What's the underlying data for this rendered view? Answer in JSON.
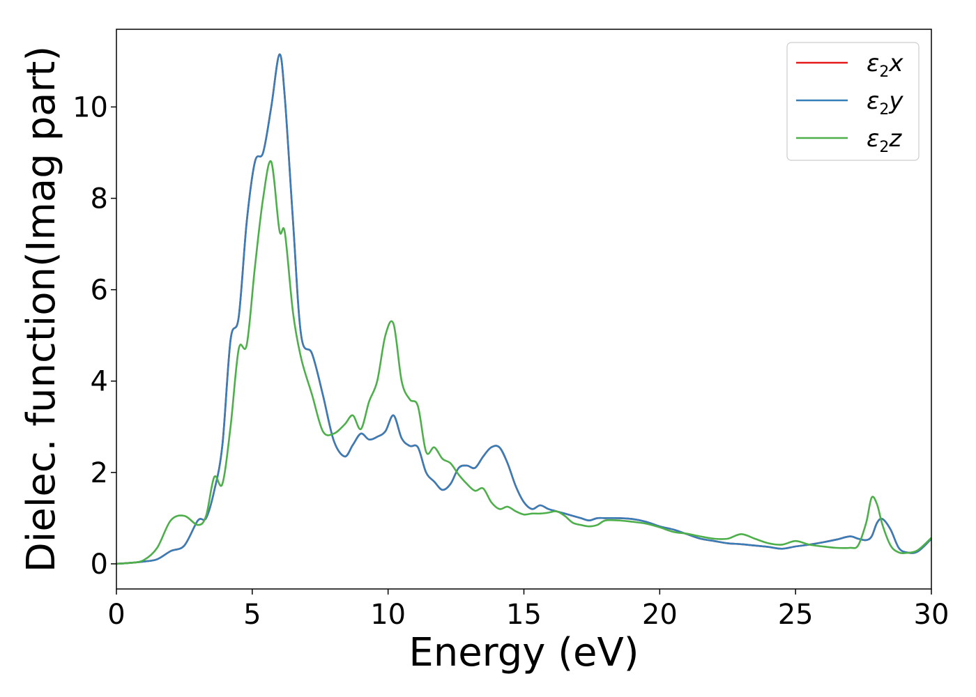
{
  "chart_data": {
    "type": "line",
    "xlabel": "Energy (eV)",
    "ylabel": "Dielec. function(Imag part)",
    "xlim": [
      0,
      30
    ],
    "ylim": [
      -0.55,
      11.7
    ],
    "xticks": [
      0,
      5,
      10,
      15,
      20,
      25,
      30
    ],
    "yticks": [
      0,
      2,
      4,
      6,
      8,
      10
    ],
    "grid": false,
    "legend_position": "top-right",
    "legend": [
      {
        "sym": "ε",
        "sub": "2",
        "var": "x",
        "color": "#e41a1c"
      },
      {
        "sym": "ε",
        "sub": "2",
        "var": "y",
        "color": "#377eb8"
      },
      {
        "sym": "ε",
        "sub": "2",
        "var": "z",
        "color": "#4daf4a"
      }
    ],
    "x": [
      0,
      0.5,
      1,
      1.5,
      2,
      2.5,
      3,
      3.3,
      3.6,
      3.9,
      4.2,
      4.5,
      4.8,
      5.1,
      5.4,
      5.7,
      6,
      6.2,
      6.5,
      6.8,
      7.2,
      7.6,
      8,
      8.4,
      8.7,
      9,
      9.3,
      9.6,
      9.9,
      10.2,
      10.5,
      10.8,
      11.1,
      11.4,
      11.7,
      12,
      12.3,
      12.6,
      12.9,
      13.2,
      13.5,
      13.8,
      14.1,
      14.4,
      14.7,
      15,
      15.3,
      15.6,
      15.9,
      16.2,
      16.5,
      16.8,
      17.1,
      17.4,
      17.7,
      18,
      18.5,
      19,
      19.5,
      20,
      20.5,
      21,
      21.5,
      22,
      22.5,
      23,
      23.5,
      24,
      24.5,
      25,
      25.5,
      26,
      26.5,
      27,
      27.3,
      27.6,
      27.8,
      28,
      28.2,
      28.5,
      28.8,
      29.1,
      29.5,
      30
    ],
    "series": [
      {
        "color": "#e41a1c",
        "values": [
          0,
          0.02,
          0.05,
          0.1,
          0.28,
          0.4,
          0.95,
          1.0,
          1.6,
          2.6,
          4.9,
          5.4,
          7.5,
          8.8,
          9.0,
          10.0,
          11.15,
          10.2,
          7.5,
          5.0,
          4.6,
          3.7,
          2.7,
          2.35,
          2.6,
          2.85,
          2.72,
          2.78,
          2.9,
          3.25,
          2.75,
          2.58,
          2.55,
          2.0,
          1.8,
          1.62,
          1.75,
          2.1,
          2.15,
          2.1,
          2.35,
          2.55,
          2.55,
          2.2,
          1.7,
          1.35,
          1.2,
          1.28,
          1.2,
          1.15,
          1.1,
          1.05,
          1.0,
          0.95,
          1.0,
          1.0,
          1.0,
          0.98,
          0.92,
          0.82,
          0.75,
          0.65,
          0.55,
          0.5,
          0.45,
          0.43,
          0.4,
          0.37,
          0.33,
          0.38,
          0.42,
          0.47,
          0.53,
          0.6,
          0.55,
          0.52,
          0.6,
          0.9,
          0.98,
          0.75,
          0.35,
          0.25,
          0.27,
          0.55
        ]
      },
      {
        "color": "#377eb8",
        "values": [
          0,
          0.02,
          0.05,
          0.1,
          0.28,
          0.4,
          0.95,
          1.0,
          1.6,
          2.6,
          4.9,
          5.4,
          7.5,
          8.8,
          9.0,
          10.0,
          11.15,
          10.2,
          7.5,
          5.0,
          4.6,
          3.7,
          2.7,
          2.35,
          2.6,
          2.85,
          2.72,
          2.78,
          2.9,
          3.25,
          2.75,
          2.58,
          2.55,
          2.0,
          1.8,
          1.62,
          1.75,
          2.1,
          2.15,
          2.1,
          2.35,
          2.55,
          2.55,
          2.2,
          1.7,
          1.35,
          1.2,
          1.28,
          1.2,
          1.15,
          1.1,
          1.05,
          1.0,
          0.95,
          1.0,
          1.0,
          1.0,
          0.98,
          0.92,
          0.82,
          0.75,
          0.65,
          0.55,
          0.5,
          0.45,
          0.43,
          0.4,
          0.37,
          0.33,
          0.38,
          0.42,
          0.47,
          0.53,
          0.6,
          0.55,
          0.52,
          0.6,
          0.9,
          0.98,
          0.75,
          0.35,
          0.25,
          0.27,
          0.55
        ]
      },
      {
        "color": "#4daf4a",
        "values": [
          0,
          0.02,
          0.08,
          0.35,
          0.95,
          1.05,
          0.85,
          1.05,
          1.9,
          1.75,
          3.0,
          4.7,
          4.8,
          6.5,
          8.0,
          8.8,
          7.3,
          7.25,
          5.5,
          4.5,
          3.7,
          2.9,
          2.85,
          3.05,
          3.25,
          2.95,
          3.55,
          4.0,
          5.0,
          5.25,
          4.0,
          3.6,
          3.45,
          2.45,
          2.55,
          2.3,
          2.2,
          1.95,
          1.75,
          1.6,
          1.65,
          1.35,
          1.2,
          1.25,
          1.15,
          1.08,
          1.1,
          1.1,
          1.12,
          1.15,
          1.05,
          0.9,
          0.85,
          0.82,
          0.85,
          0.95,
          0.95,
          0.92,
          0.88,
          0.8,
          0.7,
          0.66,
          0.6,
          0.55,
          0.55,
          0.65,
          0.55,
          0.45,
          0.42,
          0.5,
          0.42,
          0.38,
          0.35,
          0.35,
          0.4,
          0.9,
          1.45,
          1.3,
          0.85,
          0.4,
          0.25,
          0.24,
          0.3,
          0.57
        ]
      }
    ]
  }
}
